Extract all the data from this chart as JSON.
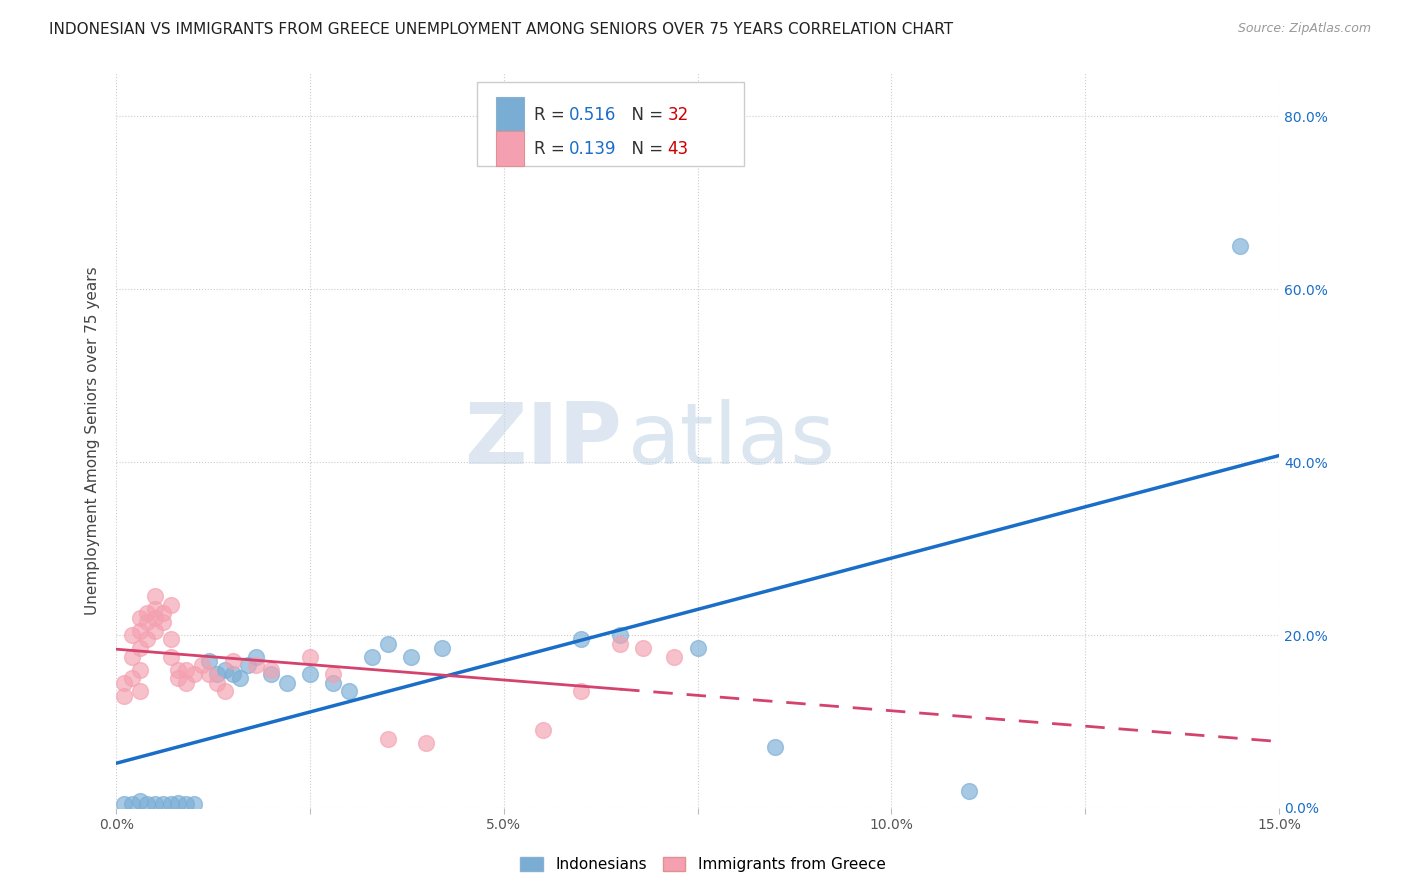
{
  "title": "INDONESIAN VS IMMIGRANTS FROM GREECE UNEMPLOYMENT AMONG SENIORS OVER 75 YEARS CORRELATION CHART",
  "source": "Source: ZipAtlas.com",
  "ylabel": "Unemployment Among Seniors over 75 years",
  "xlim": [
    0.0,
    0.15
  ],
  "ylim": [
    0.0,
    0.85
  ],
  "xticks": [
    0.0,
    0.025,
    0.05,
    0.075,
    0.1,
    0.125,
    0.15
  ],
  "xtick_labels": [
    "0.0%",
    "",
    "5.0%",
    "",
    "10.0%",
    "",
    "15.0%"
  ],
  "ytick_labels_right": [
    "0.0%",
    "20.0%",
    "40.0%",
    "60.0%",
    "80.0%"
  ],
  "ytick_positions_right": [
    0.0,
    0.2,
    0.4,
    0.6,
    0.8
  ],
  "grid_color": "#cccccc",
  "background_color": "#ffffff",
  "indonesian_color": "#7aadd4",
  "greece_color": "#f4a0b0",
  "indonesian_R": 0.516,
  "indonesian_N": 32,
  "greece_R": 0.139,
  "greece_N": 43,
  "indonesian_scatter": [
    [
      0.001,
      0.005
    ],
    [
      0.002,
      0.005
    ],
    [
      0.003,
      0.008
    ],
    [
      0.004,
      0.005
    ],
    [
      0.005,
      0.005
    ],
    [
      0.006,
      0.005
    ],
    [
      0.007,
      0.005
    ],
    [
      0.008,
      0.006
    ],
    [
      0.009,
      0.005
    ],
    [
      0.01,
      0.005
    ],
    [
      0.012,
      0.17
    ],
    [
      0.013,
      0.155
    ],
    [
      0.014,
      0.16
    ],
    [
      0.015,
      0.155
    ],
    [
      0.016,
      0.15
    ],
    [
      0.017,
      0.165
    ],
    [
      0.018,
      0.175
    ],
    [
      0.02,
      0.155
    ],
    [
      0.022,
      0.145
    ],
    [
      0.025,
      0.155
    ],
    [
      0.028,
      0.145
    ],
    [
      0.03,
      0.135
    ],
    [
      0.033,
      0.175
    ],
    [
      0.035,
      0.19
    ],
    [
      0.038,
      0.175
    ],
    [
      0.042,
      0.185
    ],
    [
      0.06,
      0.195
    ],
    [
      0.065,
      0.2
    ],
    [
      0.075,
      0.185
    ],
    [
      0.085,
      0.07
    ],
    [
      0.11,
      0.02
    ],
    [
      0.145,
      0.65
    ]
  ],
  "greece_scatter": [
    [
      0.001,
      0.13
    ],
    [
      0.001,
      0.145
    ],
    [
      0.002,
      0.15
    ],
    [
      0.002,
      0.175
    ],
    [
      0.002,
      0.2
    ],
    [
      0.003,
      0.135
    ],
    [
      0.003,
      0.16
    ],
    [
      0.003,
      0.185
    ],
    [
      0.003,
      0.205
    ],
    [
      0.003,
      0.22
    ],
    [
      0.004,
      0.195
    ],
    [
      0.004,
      0.215
    ],
    [
      0.004,
      0.225
    ],
    [
      0.005,
      0.205
    ],
    [
      0.005,
      0.22
    ],
    [
      0.005,
      0.23
    ],
    [
      0.005,
      0.245
    ],
    [
      0.006,
      0.215
    ],
    [
      0.006,
      0.225
    ],
    [
      0.007,
      0.235
    ],
    [
      0.007,
      0.195
    ],
    [
      0.007,
      0.175
    ],
    [
      0.008,
      0.16
    ],
    [
      0.008,
      0.15
    ],
    [
      0.009,
      0.145
    ],
    [
      0.009,
      0.16
    ],
    [
      0.01,
      0.155
    ],
    [
      0.011,
      0.165
    ],
    [
      0.012,
      0.155
    ],
    [
      0.013,
      0.145
    ],
    [
      0.014,
      0.135
    ],
    [
      0.015,
      0.17
    ],
    [
      0.018,
      0.165
    ],
    [
      0.02,
      0.16
    ],
    [
      0.025,
      0.175
    ],
    [
      0.028,
      0.155
    ],
    [
      0.035,
      0.08
    ],
    [
      0.04,
      0.075
    ],
    [
      0.055,
      0.09
    ],
    [
      0.06,
      0.135
    ],
    [
      0.065,
      0.19
    ],
    [
      0.068,
      0.185
    ],
    [
      0.072,
      0.175
    ]
  ],
  "watermark_zip": "ZIP",
  "watermark_atlas": "atlas",
  "legend_labels": [
    "Indonesians",
    "Immigrants from Greece"
  ]
}
